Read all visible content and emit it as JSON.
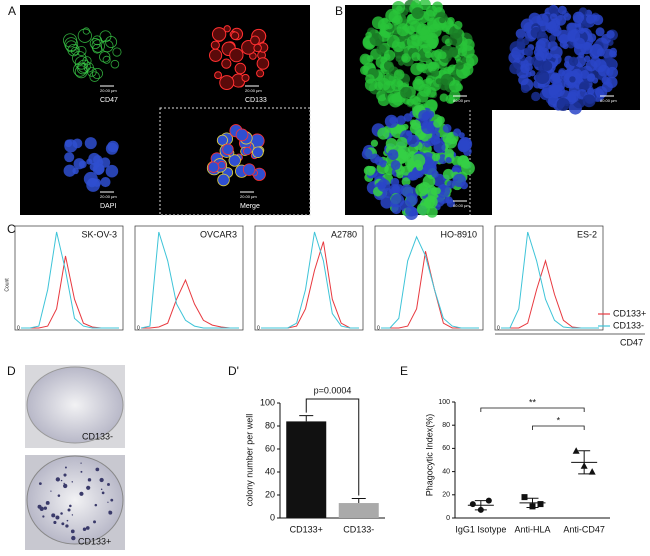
{
  "panel_labels": [
    "A",
    "B",
    "C",
    "D",
    "D'",
    "E"
  ],
  "microscopy": {
    "A": {
      "channels": [
        "CD47",
        "CD133",
        "DAPI",
        "Merge"
      ],
      "scale": [
        "20.00 µm",
        "20.00 µm",
        "20.00 µm",
        "20.00 µm"
      ]
    },
    "B": {
      "scale": [
        "80.00 µm",
        "80.00 µm",
        "80.00 µm"
      ]
    },
    "D": {
      "labels": [
        "CD133-",
        "CD133+"
      ]
    }
  },
  "chart_data": [
    {
      "type": "density",
      "title": "SK-OV-3",
      "ylabel": "Count",
      "x": [
        0,
        1,
        2,
        3,
        4,
        5,
        6,
        7,
        8,
        9,
        10,
        11
      ],
      "xlim": [
        0,
        11
      ],
      "ylim": [
        0,
        100
      ],
      "yticks": [
        0
      ],
      "series": [
        {
          "color": "#e8393f",
          "values": [
            0,
            0,
            0,
            2,
            20,
            75,
            30,
            5,
            1,
            0,
            0,
            0
          ]
        },
        {
          "color": "#3ec4d8",
          "values": [
            0,
            0,
            2,
            40,
            100,
            60,
            10,
            2,
            0,
            0,
            0,
            0
          ]
        }
      ]
    },
    {
      "type": "density",
      "title": "OVCAR3",
      "x": [
        0,
        1,
        2,
        3,
        4,
        5,
        6,
        7,
        8,
        9,
        10,
        11
      ],
      "xlim": [
        0,
        11
      ],
      "ylim": [
        0,
        100
      ],
      "yticks": [
        0
      ],
      "series": [
        {
          "color": "#e8393f",
          "values": [
            0,
            0,
            1,
            5,
            30,
            50,
            25,
            8,
            3,
            1,
            0,
            0
          ]
        },
        {
          "color": "#3ec4d8",
          "values": [
            0,
            2,
            100,
            70,
            25,
            8,
            2,
            0,
            0,
            0,
            0,
            0
          ]
        }
      ]
    },
    {
      "type": "density",
      "title": "A2780",
      "x": [
        0,
        1,
        2,
        3,
        4,
        5,
        6,
        7,
        8,
        9,
        10,
        11
      ],
      "xlim": [
        0,
        11
      ],
      "ylim": [
        0,
        100
      ],
      "yticks": [
        0
      ],
      "series": [
        {
          "color": "#e8393f",
          "values": [
            0,
            0,
            0,
            0,
            2,
            20,
            60,
            90,
            30,
            5,
            0,
            0
          ]
        },
        {
          "color": "#3ec4d8",
          "values": [
            0,
            0,
            0,
            0,
            5,
            40,
            100,
            70,
            15,
            2,
            0,
            0
          ]
        }
      ]
    },
    {
      "type": "density",
      "title": "HO-8910",
      "x": [
        0,
        1,
        2,
        3,
        4,
        5,
        6,
        7,
        8,
        9,
        10,
        11
      ],
      "xlim": [
        0,
        11
      ],
      "ylim": [
        0,
        100
      ],
      "yticks": [
        0
      ],
      "series": [
        {
          "color": "#e8393f",
          "values": [
            0,
            0,
            0,
            2,
            20,
            80,
            40,
            5,
            0,
            0,
            0,
            0
          ]
        },
        {
          "color": "#3ec4d8",
          "values": [
            0,
            0,
            10,
            70,
            95,
            75,
            40,
            10,
            2,
            0,
            0,
            0
          ]
        }
      ]
    },
    {
      "type": "density",
      "title": "ES-2",
      "xlabel": "CD47",
      "x": [
        0,
        1,
        2,
        3,
        4,
        5,
        6,
        7,
        8,
        9,
        10,
        11
      ],
      "xlim": [
        0,
        11
      ],
      "ylim": [
        0,
        100
      ],
      "yticks": [
        0
      ],
      "series": [
        {
          "name": "CD133+",
          "color": "#e8393f",
          "values": [
            0,
            0,
            0,
            5,
            40,
            70,
            35,
            8,
            1,
            0,
            0,
            0
          ]
        },
        {
          "name": "CD133-",
          "color": "#3ec4d8",
          "values": [
            0,
            0,
            20,
            100,
            70,
            30,
            8,
            1,
            0,
            0,
            0,
            0
          ]
        }
      ]
    },
    {
      "type": "bar",
      "ylabel": "colony number per well",
      "categories": [
        "CD133+",
        "CD133-"
      ],
      "values": [
        84,
        13
      ],
      "errors": [
        5,
        4
      ],
      "colors": [
        "#111111",
        "#aaaaaa"
      ],
      "ylim": [
        0,
        100
      ],
      "yticks": [
        0,
        20,
        40,
        60,
        80,
        100
      ],
      "annotation": "p=0.0004"
    },
    {
      "type": "dotplot",
      "ylabel": "Phagocytic Index(%)",
      "categories": [
        "IgG1 Isotype",
        "Anti-HLA",
        "Anti-CD47"
      ],
      "points": [
        [
          12,
          7,
          15
        ],
        [
          18,
          10,
          12
        ],
        [
          58,
          45,
          40
        ]
      ],
      "markers": [
        "circle",
        "square",
        "triangle"
      ],
      "means": [
        11,
        13,
        48
      ],
      "sds": [
        4,
        4,
        10
      ],
      "ylim": [
        0,
        100
      ],
      "yticks": [
        0,
        20,
        40,
        60,
        80,
        100
      ],
      "annotations": [
        {
          "text": "**",
          "between": [
            0,
            2
          ]
        },
        {
          "text": "*",
          "between": [
            1,
            2
          ]
        }
      ]
    }
  ]
}
